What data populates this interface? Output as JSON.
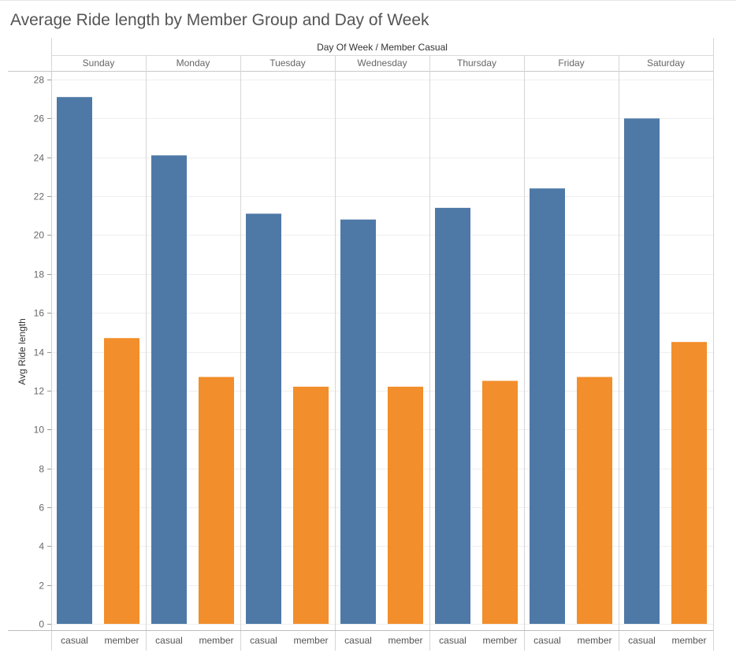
{
  "title": "Average Ride length by Member Group and Day of Week",
  "chart_data": {
    "type": "bar",
    "column_header": "Day Of Week  /  Member Casual",
    "ylabel": "Avg Ride length",
    "ylim": [
      0,
      28
    ],
    "yticks": [
      "0",
      "2",
      "4",
      "6",
      "8",
      "10",
      "12",
      "14",
      "16",
      "18",
      "20",
      "22",
      "24",
      "26",
      "28"
    ],
    "groups": [
      "Sunday",
      "Monday",
      "Tuesday",
      "Wednesday",
      "Thursday",
      "Friday",
      "Saturday"
    ],
    "subcategories": [
      "casual",
      "member"
    ],
    "series": [
      {
        "name": "casual",
        "color": "#4e79a7",
        "values": [
          27.1,
          24.1,
          21.1,
          20.8,
          21.4,
          22.4,
          26.0
        ]
      },
      {
        "name": "member",
        "color": "#f28e2b",
        "values": [
          14.7,
          12.7,
          12.2,
          12.2,
          12.5,
          12.7,
          14.5
        ]
      }
    ],
    "grid": true
  }
}
